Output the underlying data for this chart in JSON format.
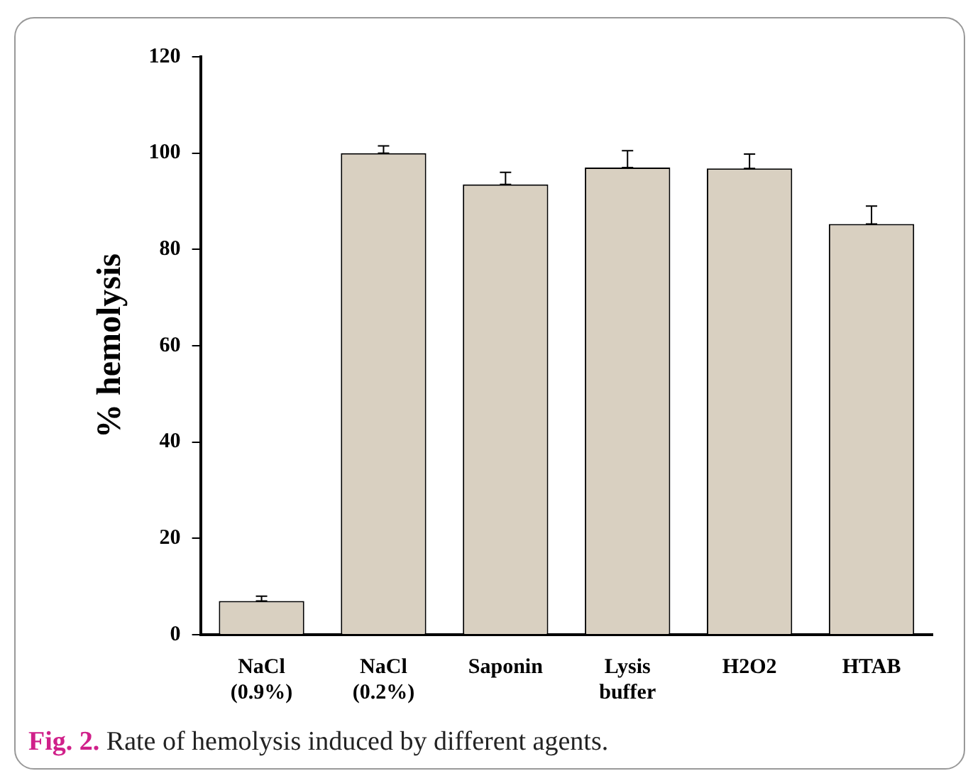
{
  "chart_data": {
    "type": "bar",
    "ylabel": "% hemolysis",
    "categories": [
      "NaCl\n(0.9%)",
      "NaCl\n(0.2%)",
      "Saponin",
      "Lysis\nbuffer",
      "H2O2",
      "HTAB"
    ],
    "values": [
      7,
      100,
      93.5,
      97,
      96.8,
      85.3
    ],
    "errors": [
      [
        7,
        8
      ],
      [
        100,
        101.5
      ],
      [
        93.5,
        96
      ],
      [
        97,
        100.5
      ],
      [
        96.8,
        99.8
      ],
      [
        85.3,
        89
      ]
    ],
    "color": "#d9d0c1",
    "ylim": [
      0,
      120
    ],
    "yticks": [
      0,
      20,
      40,
      60,
      80,
      100,
      120
    ],
    "grid": false,
    "legend": false,
    "annotations": [
      "Fig. 2.",
      "Rate of hemolysis induced by different agents."
    ]
  }
}
